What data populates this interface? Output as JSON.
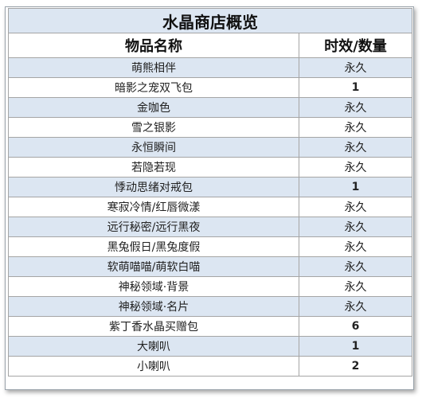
{
  "title": "水晶商店概览",
  "headers": {
    "name": "物品名称",
    "value": "时效/数量"
  },
  "rows": [
    {
      "name": "萌熊相伴",
      "value": "永久"
    },
    {
      "name": "暗影之宠双飞包",
      "value": "1"
    },
    {
      "name": "金咖色",
      "value": "永久"
    },
    {
      "name": "雪之银影",
      "value": "永久"
    },
    {
      "name": "永恒瞬间",
      "value": "永久"
    },
    {
      "name": "若隐若现",
      "value": "永久"
    },
    {
      "name": "悸动思绪对戒包",
      "value": "1"
    },
    {
      "name": "寒寂冷情/红唇微漾",
      "value": "永久"
    },
    {
      "name": "远行秘密/远行黑夜",
      "value": "永久"
    },
    {
      "name": "黑兔假日/黑兔度假",
      "value": "永久"
    },
    {
      "name": "软萌喵喵/萌软白喵",
      "value": "永久"
    },
    {
      "name": "神秘领域·背景",
      "value": "永久"
    },
    {
      "name": "神秘领域·名片",
      "value": "永久"
    },
    {
      "name": "紫丁香水晶买赠包",
      "value": "6"
    },
    {
      "name": "大喇叭",
      "value": "1"
    },
    {
      "name": "小喇叭",
      "value": "2"
    }
  ],
  "colors": {
    "band": "#dce6f2",
    "plain": "#ffffff",
    "border": "#a5a5a5"
  }
}
